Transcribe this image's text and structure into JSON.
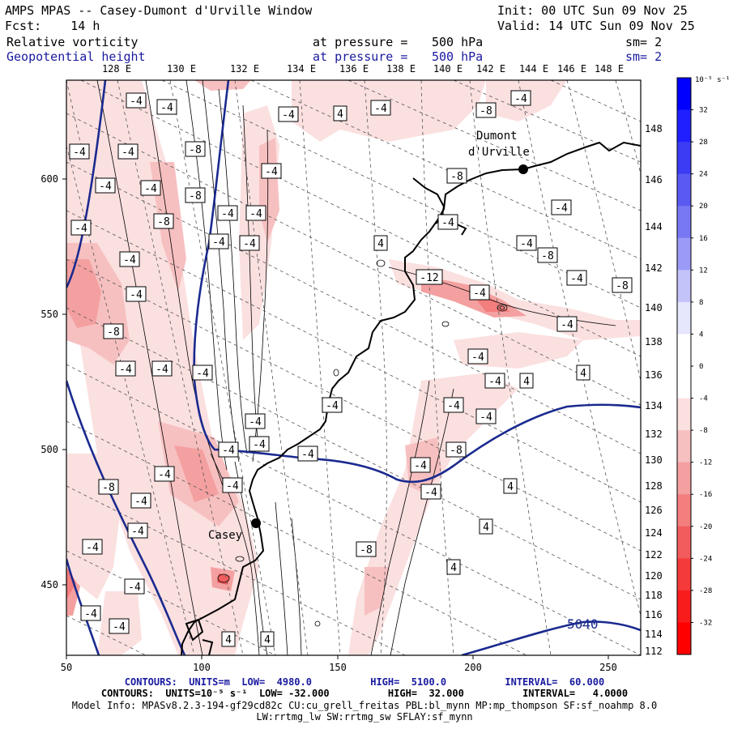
{
  "header": {
    "line1_left": "AMPS MPAS -- Casey-Dumont d'Urville Window",
    "line1_right": "Init: 00 UTC Sun 09 Nov 25",
    "line2_left": "Fcst:    14 h",
    "line2_right": "Valid: 14 UTC Sun 09 Nov 25",
    "field1": {
      "name": "Relative vorticity",
      "pressure_label": "at pressure =",
      "pressure": "500 hPa",
      "sm": "sm= 2"
    },
    "field2": {
      "name": "Geopotential height",
      "pressure_label": "at pressure =",
      "pressure": "500 hPa",
      "sm": "sm= 2"
    }
  },
  "axes": {
    "x_ticks": [
      "50",
      "100",
      "150",
      "200",
      "250"
    ],
    "y_ticks": [
      "600",
      "550",
      "500",
      "450"
    ],
    "lon_top": [
      "128 E",
      "130 E",
      "132 E",
      "134 E",
      "136 E",
      "138 E",
      "140 E",
      "142 E",
      "144 E",
      "146 E",
      "148 E"
    ],
    "lat_right": [
      "148",
      "146",
      "144",
      "142",
      "140",
      "138",
      "136",
      "134",
      "132",
      "130",
      "128",
      "126",
      "124",
      "122",
      "120",
      "118",
      "116",
      "114",
      "112"
    ]
  },
  "colorbar": {
    "unit": "10⁻⁵ s⁻¹",
    "labels": [
      "32",
      "28",
      "24",
      "20",
      "16",
      "12",
      "8",
      "4",
      "0",
      "-4",
      "-8",
      "-12",
      "-16",
      "-20",
      "-24",
      "-28",
      "-32"
    ],
    "colors_top_to_bottom": [
      "#0000ff",
      "#1f1fff",
      "#3c3cf5",
      "#5a5af2",
      "#7878f5",
      "#9b9bf7",
      "#c3c3fa",
      "#e6e6fd",
      "#ffffff",
      "#ffffff",
      "#fbe0e0",
      "#f7c0c0",
      "#f4a0a0",
      "#f37e7e",
      "#f25c5c",
      "#f53a3a",
      "#f81c1c",
      "#ff0000"
    ]
  },
  "map": {
    "stations": [
      {
        "name": "Dumont\nd'Urville"
      },
      {
        "name": "Casey"
      }
    ],
    "height_contour_label": "5040",
    "vorticity_labels": [
      "-4",
      "-4",
      "-4",
      "-4",
      "-8",
      "-4",
      "-4",
      "-4",
      "-8",
      "-4",
      "-4",
      "-4",
      "-8",
      "-4",
      "-4",
      "-8",
      "-4",
      "-4",
      "-4",
      "-4",
      "-8",
      "-4",
      "-4",
      "-8",
      "-12",
      "-4",
      "-8",
      "-4",
      "-4",
      "-8",
      "-4",
      "-4",
      "-4",
      "-4",
      "-4",
      "-4",
      "-4",
      "-8",
      "-4",
      "-4",
      "-8",
      "-4",
      "-4",
      "-4",
      "-4",
      "-8",
      "-4",
      "-4",
      "-4",
      "-4",
      "-4",
      "-4",
      "-4",
      "-4",
      "-4",
      "-4",
      "-4",
      "4",
      "4",
      "4",
      "4",
      "4",
      "4",
      "4",
      "4",
      "4"
    ]
  },
  "footer": {
    "line1": "CONTOURS:  UNITS=m  LOW=  4980.0          HIGH=  5100.0          INTERVAL=  60.000",
    "line2": "CONTOURS:  UNITS=10⁻⁵ s⁻¹  LOW= -32.000          HIGH=  32.000          INTERVAL=   4.0000",
    "line3": "Model Info: MPASv8.2.3-194-gf29cd82c CU:cu_grell_freitas PBL:bl_mynn MP:mp_thompson SF:sf_noahmp 8.0",
    "line4": "LW:rrtmg_lw SW:rrtmg_sw SFLAY:sf_mynn"
  }
}
